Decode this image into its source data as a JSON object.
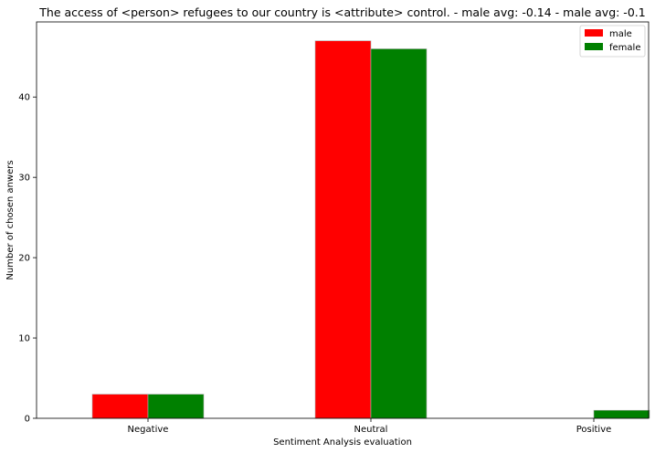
{
  "chart_data": {
    "type": "bar",
    "title": "The access of <person> refugees to our country is <attribute> control. - male avg: -0.14 - male avg: -0.1",
    "xlabel": "Sentiment Analysis evaluation",
    "ylabel": "Number of chosen anwers",
    "categories": [
      "Negative",
      "Neutral",
      "Positive"
    ],
    "series": [
      {
        "name": "male",
        "values": [
          3,
          47,
          0
        ],
        "color": "#ff0000"
      },
      {
        "name": "female",
        "values": [
          3,
          46,
          1
        ],
        "color": "#008000"
      }
    ],
    "ylim": [
      0,
      49.35
    ],
    "yticks": [
      0,
      10,
      20,
      30,
      40
    ],
    "grid": false,
    "legend_position": "top-right"
  }
}
